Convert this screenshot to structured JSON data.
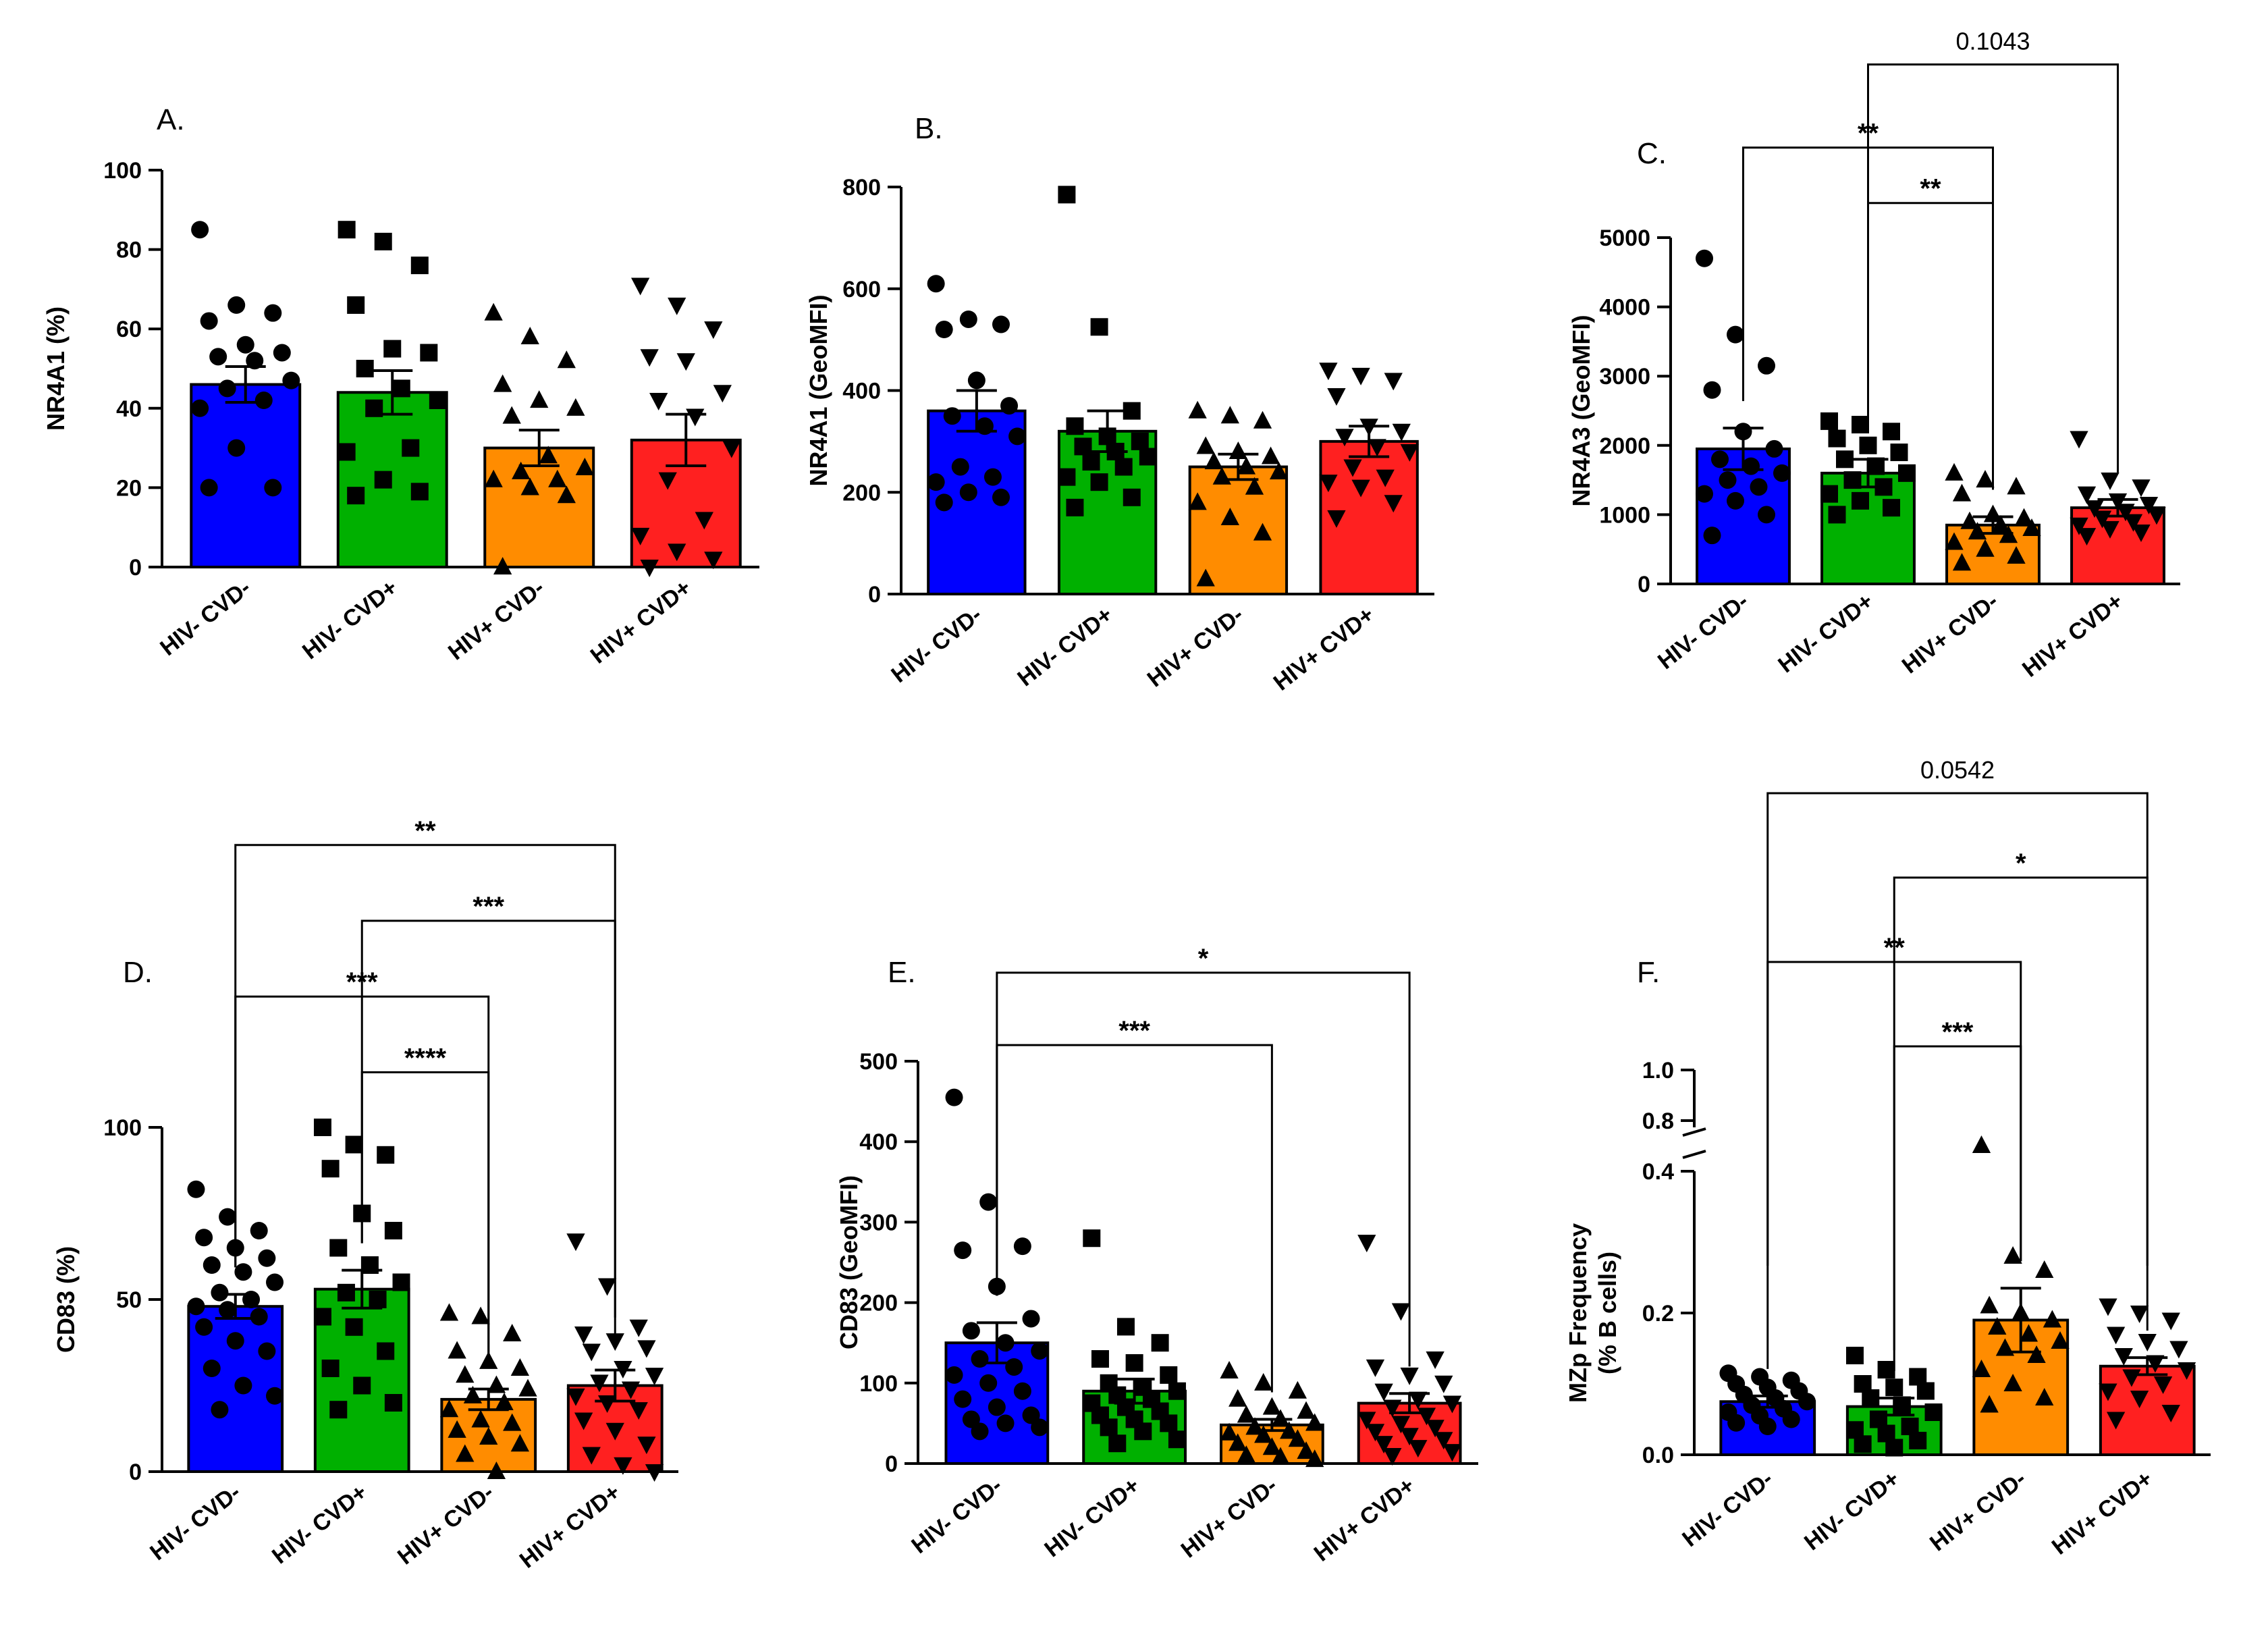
{
  "figure": {
    "colors": {
      "HIV- CVD-": "#0000ff",
      "HIV- CVD+": "#00b000",
      "HIV+ CVD-": "#ff8c00",
      "HIV+ CVD+": "#ff2020",
      "axis": "#000000"
    }
  },
  "chart_data": [
    {
      "panel": "A.",
      "type": "bar",
      "ylabel": "NR4A1 (%)",
      "ylim": [
        0,
        100
      ],
      "yticks": [
        0,
        20,
        40,
        60,
        80,
        100
      ],
      "categories": [
        "HIV- CVD-",
        "HIV- CVD+",
        "HIV+ CVD-",
        "HIV+ CVD+"
      ],
      "values": [
        46,
        44,
        30,
        32
      ],
      "sem": [
        4.5,
        5.5,
        4.5,
        6.5
      ],
      "markers": [
        "circle",
        "square",
        "triangle-up",
        "triangle-down"
      ],
      "points": [
        [
          85,
          66,
          64,
          62,
          56,
          54,
          53,
          52,
          47,
          45,
          42,
          40,
          30,
          20,
          20
        ],
        [
          85,
          82,
          76,
          66,
          55,
          54,
          50,
          45,
          42,
          40,
          30,
          29,
          22,
          19,
          18
        ],
        [
          64,
          58,
          52,
          46,
          42,
          40,
          38,
          28,
          25,
          24,
          22,
          22,
          20,
          18,
          0
        ],
        [
          71,
          66,
          60,
          53,
          52,
          44,
          42,
          38,
          30,
          22,
          12,
          8,
          4,
          2,
          0
        ]
      ],
      "significance": []
    },
    {
      "panel": "B.",
      "type": "bar",
      "ylabel": "NR4A1 (GeoMFI)",
      "ylim": [
        0,
        800
      ],
      "yticks": [
        0,
        200,
        400,
        600,
        800
      ],
      "categories": [
        "HIV- CVD-",
        "HIV- CVD+",
        "HIV+ CVD-",
        "HIV+ CVD+"
      ],
      "values": [
        360,
        320,
        250,
        300
      ],
      "sem": [
        40,
        40,
        25,
        30
      ],
      "markers": [
        "circle",
        "square",
        "triangle-up",
        "triangle-down"
      ],
      "points": [
        [
          610,
          540,
          530,
          520,
          420,
          370,
          350,
          330,
          310,
          250,
          230,
          220,
          200,
          190,
          180
        ],
        [
          785,
          525,
          360,
          330,
          310,
          300,
          290,
          280,
          270,
          260,
          250,
          230,
          220,
          190,
          170
        ],
        [
          360,
          350,
          340,
          290,
          280,
          270,
          260,
          250,
          240,
          230,
          210,
          180,
          150,
          120,
          30
        ],
        [
          440,
          430,
          420,
          390,
          330,
          320,
          310,
          290,
          280,
          250,
          230,
          220,
          210,
          180,
          150
        ]
      ],
      "significance": []
    },
    {
      "panel": "C.",
      "type": "bar",
      "ylabel": "NR4A3 (GeoMFI)",
      "ylim": [
        0,
        5000
      ],
      "yticks": [
        0,
        1000,
        2000,
        3000,
        4000,
        5000
      ],
      "categories": [
        "HIV- CVD-",
        "HIV- CVD+",
        "HIV+ CVD-",
        "HIV+ CVD+"
      ],
      "values": [
        1950,
        1600,
        850,
        1100
      ],
      "sem": [
        300,
        200,
        120,
        120
      ],
      "markers": [
        "circle",
        "square",
        "triangle-up",
        "triangle-down"
      ],
      "points": [
        [
          4700,
          3600,
          3150,
          2800,
          2200,
          1950,
          1800,
          1700,
          1600,
          1500,
          1400,
          1300,
          1200,
          1000,
          700
        ],
        [
          2350,
          2300,
          2200,
          2100,
          2000,
          1900,
          1800,
          1700,
          1600,
          1500,
          1400,
          1300,
          1200,
          1100,
          1000
        ],
        [
          1600,
          1500,
          1400,
          1300,
          1000,
          950,
          900,
          850,
          800,
          750,
          700,
          600,
          500,
          400,
          300
        ],
        [
          2100,
          1500,
          1400,
          1300,
          1200,
          1150,
          1100,
          1050,
          1000,
          950,
          900,
          850,
          800,
          750,
          700
        ]
      ],
      "significance": [
        {
          "from": 0,
          "to": 2,
          "label": "**",
          "y": 6300
        },
        {
          "from": 1,
          "to": 2,
          "label": "**",
          "y": 5500
        },
        {
          "from": 1,
          "to": 3,
          "label": "0.1043",
          "y": 7500
        }
      ]
    },
    {
      "panel": "D.",
      "type": "bar",
      "ylabel": "CD83 (%)",
      "ylim": [
        0,
        100
      ],
      "yticks": [
        0,
        50,
        100
      ],
      "categories": [
        "HIV- CVD-",
        "HIV- CVD+",
        "HIV+ CVD-",
        "HIV+ CVD+"
      ],
      "values": [
        48,
        53,
        21,
        25
      ],
      "sem": [
        3.5,
        5.5,
        3,
        4.5
      ],
      "markers": [
        "circle",
        "square",
        "triangle-up",
        "triangle-down"
      ],
      "points": [
        [
          82,
          74,
          70,
          68,
          65,
          62,
          60,
          58,
          55,
          52,
          50,
          48,
          47,
          45,
          42,
          38,
          35,
          30,
          25,
          22,
          18
        ],
        [
          100,
          95,
          92,
          88,
          75,
          70,
          65,
          60,
          55,
          52,
          50,
          45,
          42,
          35,
          30,
          25,
          20,
          18
        ],
        [
          46,
          45,
          40,
          35,
          32,
          30,
          28,
          25,
          24,
          22,
          20,
          18,
          15,
          14,
          12,
          10,
          8,
          5,
          0
        ],
        [
          67,
          54,
          42,
          40,
          38,
          36,
          35,
          30,
          28,
          26,
          24,
          22,
          20,
          18,
          15,
          12,
          8,
          5,
          2,
          0
        ]
      ],
      "significance": [
        {
          "from": 1,
          "to": 2,
          "label": "****",
          "y": 116
        },
        {
          "from": 0,
          "to": 2,
          "label": "***",
          "y": 138
        },
        {
          "from": 1,
          "to": 3,
          "label": "***",
          "y": 160
        },
        {
          "from": 0,
          "to": 3,
          "label": "**",
          "y": 182
        }
      ]
    },
    {
      "panel": "E.",
      "type": "bar",
      "ylabel": "CD83 (GeoMFI)",
      "ylim": [
        0,
        500
      ],
      "yticks": [
        0,
        100,
        200,
        300,
        400,
        500
      ],
      "categories": [
        "HIV- CVD-",
        "HIV- CVD+",
        "HIV+ CVD-",
        "HIV+ CVD+"
      ],
      "values": [
        150,
        90,
        48,
        75
      ],
      "sem": [
        25,
        15,
        7,
        12
      ],
      "markers": [
        "circle",
        "square",
        "triangle-up",
        "triangle-down"
      ],
      "points": [
        [
          455,
          325,
          270,
          265,
          220,
          180,
          165,
          150,
          140,
          130,
          120,
          110,
          100,
          90,
          80,
          70,
          60,
          55,
          50,
          45,
          40
        ],
        [
          280,
          170,
          150,
          130,
          125,
          110,
          100,
          95,
          90,
          85,
          80,
          75,
          70,
          65,
          60,
          55,
          50,
          45,
          40,
          30,
          25
        ],
        [
          115,
          100,
          90,
          80,
          70,
          65,
          60,
          55,
          50,
          45,
          40,
          38,
          35,
          30,
          25,
          20,
          15,
          10,
          8,
          5
        ],
        [
          275,
          190,
          130,
          120,
          110,
          100,
          90,
          80,
          75,
          70,
          60,
          55,
          50,
          45,
          40,
          35,
          30,
          25,
          20,
          15,
          10
        ]
      ],
      "significance": [
        {
          "from": 0,
          "to": 2,
          "label": "***",
          "y": 520
        },
        {
          "from": 0,
          "to": 3,
          "label": "*",
          "y": 610
        }
      ]
    },
    {
      "panel": "F.",
      "type": "bar",
      "ylabel": "MZp Frequency\n(% B cells)",
      "yaxis_break": true,
      "ylim": [
        0,
        0.4
      ],
      "ylim_upper": [
        0.8,
        1.0
      ],
      "yticks": [
        0.0,
        0.2,
        0.4
      ],
      "yticks_upper": [
        0.8,
        1.0
      ],
      "categories": [
        "HIV- CVD-",
        "HIV- CVD+",
        "HIV+ CVD-",
        "HIV+ CVD+"
      ],
      "values": [
        0.075,
        0.068,
        0.19,
        0.125
      ],
      "sem": [
        0.008,
        0.012,
        0.045,
        0.012
      ],
      "markers": [
        "circle",
        "square",
        "triangle-up",
        "triangle-down"
      ],
      "points": [
        [
          0.115,
          0.11,
          0.105,
          0.1,
          0.095,
          0.09,
          0.085,
          0.08,
          0.075,
          0.07,
          0.065,
          0.06,
          0.055,
          0.05,
          0.045,
          0.04
        ],
        [
          0.14,
          0.12,
          0.11,
          0.1,
          0.095,
          0.09,
          0.08,
          0.07,
          0.06,
          0.05,
          0.04,
          0.035,
          0.03,
          0.02,
          0.015,
          0.01
        ],
        [
          0.78,
          0.28,
          0.26,
          0.21,
          0.2,
          0.19,
          0.18,
          0.17,
          0.16,
          0.15,
          0.14,
          0.12,
          0.1,
          0.08,
          0.07
        ],
        [
          0.21,
          0.2,
          0.19,
          0.17,
          0.16,
          0.15,
          0.14,
          0.13,
          0.12,
          0.11,
          0.1,
          0.09,
          0.08,
          0.06,
          0.05
        ]
      ],
      "significance": [
        {
          "from": 1,
          "to": 2,
          "label": "***",
          "y": 1.0
        },
        {
          "from": 0,
          "to": 2,
          "label": "**",
          "y": 1.14
        },
        {
          "from": 1,
          "to": 3,
          "label": "*",
          "y": 1.28
        },
        {
          "from": 0,
          "to": 3,
          "label": "0.0542",
          "y": 1.42
        }
      ]
    }
  ]
}
